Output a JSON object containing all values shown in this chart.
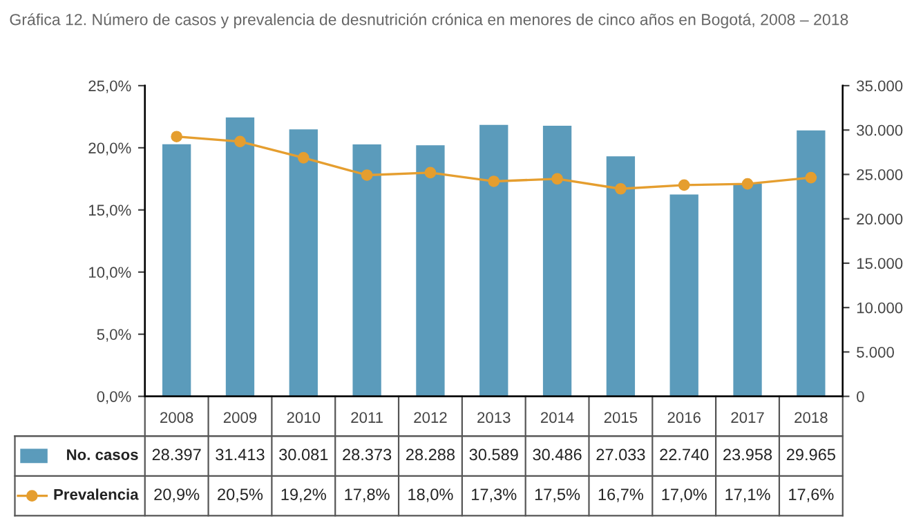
{
  "chart_data": {
    "type": "bar",
    "title": "Gráfica 12. Número de casos y prevalencia de desnutrición crónica en menores de cinco años en Bogotá, 2008 – 2018",
    "categories": [
      "2008",
      "2009",
      "2010",
      "2011",
      "2012",
      "2013",
      "2014",
      "2015",
      "2016",
      "2017",
      "2018"
    ],
    "series": [
      {
        "name": "No. casos",
        "axis": "y2",
        "color": "#5b9bbb",
        "values": [
          28397,
          31413,
          30081,
          28373,
          28288,
          30589,
          30486,
          27033,
          22740,
          23958,
          29965
        ],
        "value_labels": [
          "28.397",
          "31.413",
          "30.081",
          "28.373",
          "28.288",
          "30.589",
          "30.486",
          "27.033",
          "22.740",
          "23.958",
          "29.965"
        ]
      },
      {
        "name": "Prevalencia",
        "type": "line",
        "axis": "y",
        "color": "#e59e2f",
        "marker": "circle",
        "values": [
          20.9,
          20.5,
          19.2,
          17.8,
          18.0,
          17.3,
          17.5,
          16.7,
          17.0,
          17.1,
          17.6
        ],
        "value_labels": [
          "20,9%",
          "20,5%",
          "19,2%",
          "17,8%",
          "18,0%",
          "17,3%",
          "17,5%",
          "16,7%",
          "17,0%",
          "17,1%",
          "17,6%"
        ]
      }
    ],
    "ylim": [
      0,
      25
    ],
    "yticks": [
      {
        "value": 0,
        "label": "0,0%"
      },
      {
        "value": 5,
        "label": "5,0%"
      },
      {
        "value": 10,
        "label": "10,0%"
      },
      {
        "value": 15,
        "label": "15,0%"
      },
      {
        "value": 20,
        "label": "20,0%"
      },
      {
        "value": 25,
        "label": "25,0%"
      }
    ],
    "y2lim": [
      0,
      35000
    ],
    "y2ticks": [
      0,
      {
        "value": 5000,
        "label": "5.000"
      },
      {
        "value": 10000,
        "label": "10.000"
      },
      {
        "value": 15000,
        "label": "15.000"
      },
      {
        "value": 20000,
        "label": "20.000"
      },
      {
        "value": 25000,
        "label": "25.000"
      },
      {
        "value": 30000,
        "label": "30.000"
      },
      {
        "value": 35000,
        "label": "35.000"
      }
    ],
    "grid": false,
    "legend": "bottom"
  }
}
